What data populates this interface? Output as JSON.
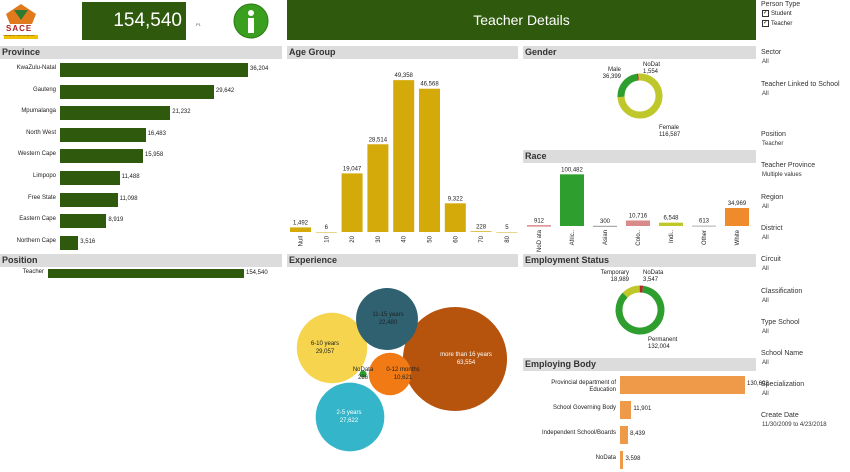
{
  "logo": {
    "text": "SACE",
    "subtext": "South African Council for Educators"
  },
  "kpi": {
    "value": "154,540",
    "unit": "P1"
  },
  "info_icon": "info-icon",
  "header": {
    "title": "Teacher Details"
  },
  "filters": {
    "person_type": {
      "title": "Person Type",
      "options": [
        {
          "label": "Student",
          "checked": true
        },
        {
          "label": "Teacher",
          "checked": true
        }
      ]
    },
    "items": [
      {
        "title": "Sector",
        "value": "All"
      },
      {
        "title": "Teacher Linked to School",
        "value": "All"
      },
      {
        "title": "Position",
        "value": "Teacher"
      },
      {
        "title": "Teacher Province",
        "value": "Multiple values"
      },
      {
        "title": "Region",
        "value": "All"
      },
      {
        "title": "District",
        "value": "All"
      },
      {
        "title": "Circuit",
        "value": "All"
      },
      {
        "title": "Classification",
        "value": "All"
      },
      {
        "title": "Type School",
        "value": "All"
      },
      {
        "title": "School Name",
        "value": "All"
      },
      {
        "title": "Specialization",
        "value": "All"
      },
      {
        "title": "Create Date",
        "value": "11/30/2009 to 4/23/2018"
      }
    ]
  },
  "panels": {
    "province": "Province",
    "position": "Position",
    "age_group": "Age Group",
    "experience": "Experience",
    "gender": "Gender",
    "race": "Race",
    "employment_status": "Employment Status",
    "employing_body": "Employing Body"
  },
  "chart_data": [
    {
      "id": "province",
      "type": "bar",
      "orientation": "horizontal",
      "categories": [
        "KwaZulu-Natal",
        "Gauteng",
        "Mpumalanga",
        "North West",
        "Western Cape",
        "Limpopo",
        "Free State",
        "Eastern Cape",
        "Northern Cape"
      ],
      "values": [
        36204,
        29642,
        21232,
        16483,
        15958,
        11488,
        11098,
        8919,
        3516
      ],
      "value_labels": [
        "36,204",
        "29,642",
        "21,232",
        "16,483",
        "15,958",
        "11,488",
        "11,098",
        "8,919",
        "3,516"
      ],
      "color": "#2f5a0e"
    },
    {
      "id": "position",
      "type": "bar",
      "orientation": "horizontal",
      "categories": [
        "Teacher"
      ],
      "values": [
        154540
      ],
      "value_labels": [
        "154,540"
      ],
      "color": "#2f5a0e"
    },
    {
      "id": "age_group",
      "type": "bar",
      "categories": [
        "Null",
        "10",
        "20",
        "30",
        "40",
        "50",
        "60",
        "70",
        "80"
      ],
      "values": [
        1492,
        6,
        19047,
        28514,
        49358,
        46568,
        9322,
        228,
        5
      ],
      "value_labels": [
        "1,492",
        "6",
        "19,047",
        "28,514",
        "49,358",
        "46,568",
        "9,322",
        "228",
        "5"
      ],
      "color": "#d4a90a"
    },
    {
      "id": "gender",
      "type": "pie",
      "donut": true,
      "labels": [
        "Male",
        "NoDat",
        "Female"
      ],
      "values": [
        36399,
        1554,
        116587
      ],
      "value_labels": [
        "36,399",
        "1,554",
        "116,587"
      ],
      "colors": [
        "#2e9e2e",
        "#b5272a",
        "#bfc72a"
      ]
    },
    {
      "id": "race",
      "type": "bar",
      "categories": [
        "NoD ata",
        "Afric..",
        "Asian",
        "Colo..",
        "Indi..",
        "Other",
        "White"
      ],
      "values": [
        912,
        100482,
        300,
        10716,
        6548,
        613,
        34969
      ],
      "value_labels": [
        "912",
        "100,482",
        "300",
        "10,716",
        "6,548",
        "613",
        "34,969"
      ],
      "colors": [
        "#c0262c",
        "#2e9e2e",
        "#7c7c7c",
        "#d98a8a",
        "#bfc72a",
        "#9a9a9a",
        "#ef8a2d"
      ]
    },
    {
      "id": "employment_status",
      "type": "pie",
      "donut": true,
      "labels": [
        "Temporary",
        "NoData",
        "Permanent"
      ],
      "values": [
        18989,
        3547,
        132004
      ],
      "value_labels": [
        "18,989",
        "3,547",
        "132,004"
      ],
      "colors": [
        "#bfc72a",
        "#b5272a",
        "#2e9e2e"
      ]
    },
    {
      "id": "employing_body",
      "type": "bar",
      "orientation": "horizontal",
      "categories": [
        "Provincial department of Education",
        "School Governing Body",
        "Independent School/Boards",
        "NoData"
      ],
      "values": [
        130602,
        11901,
        8439,
        3598
      ],
      "value_labels": [
        "130,602",
        "11,901",
        "8,439",
        "3,598"
      ],
      "color": "#ef9a48"
    },
    {
      "id": "experience",
      "type": "scatter",
      "style": "packed-bubble",
      "labels": [
        "more than 16 years",
        "6-10 years",
        "2-5 years",
        "11-15 years",
        "0-12 months",
        "NoData"
      ],
      "values": [
        63554,
        29057,
        27622,
        22480,
        10621,
        286
      ],
      "value_labels": [
        "63,554",
        "29,057",
        "27,622",
        "22,480",
        "10,621",
        "286"
      ],
      "colors": [
        "#b6530d",
        "#f6d44e",
        "#35b5c9",
        "#2f6170",
        "#f27a14",
        "#2e9e2e"
      ]
    }
  ]
}
